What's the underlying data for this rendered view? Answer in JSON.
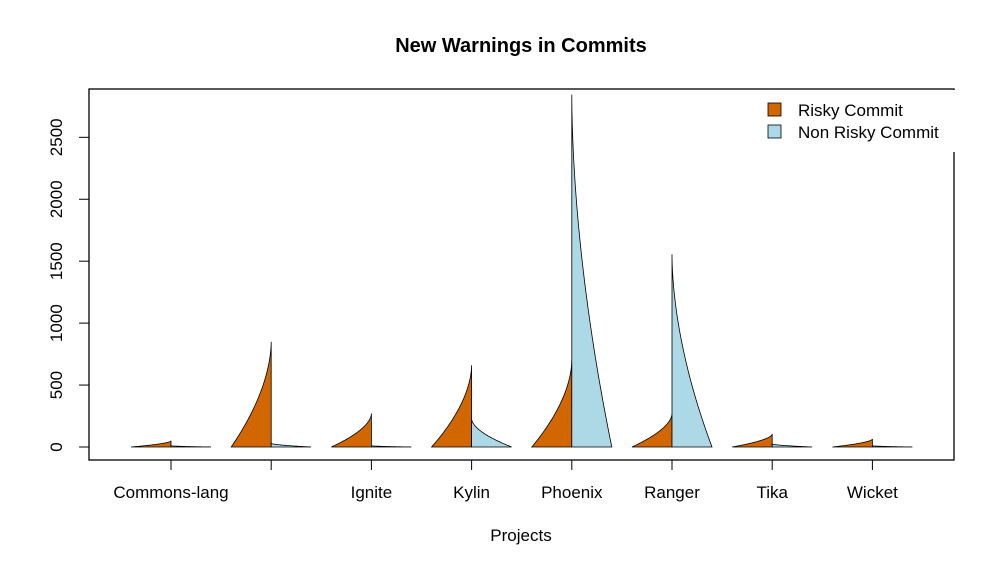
{
  "chart_data": {
    "type": "violin",
    "title": "New Warnings in Commits",
    "xlabel": "Projects",
    "ylabel": "",
    "ylim": [
      -105,
      2890
    ],
    "yticks": [
      0,
      500,
      1000,
      1500,
      2000,
      2500
    ],
    "categories": [
      "Commons-lang",
      "",
      "Ignite",
      "Kylin",
      "Phoenix",
      "Ranger",
      "Tika",
      "Wicket"
    ],
    "legend": {
      "position": "top-right",
      "entries": [
        "Risky Commit",
        "Non Risky Commit"
      ]
    },
    "series": [
      {
        "name": "Risky Commit",
        "side": "left",
        "color": "#d26600",
        "violins": [
          {
            "max": 50,
            "max_width": 40
          },
          {
            "max": 850,
            "max_width": 40
          },
          {
            "max": 270,
            "max_width": 40
          },
          {
            "max": 660,
            "max_width": 40
          },
          {
            "max": 700,
            "max_width": 40
          },
          {
            "max": 270,
            "max_width": 40
          },
          {
            "max": 105,
            "max_width": 40
          },
          {
            "max": 65,
            "max_width": 40
          }
        ]
      },
      {
        "name": "Non Risky Commit",
        "side": "right",
        "color": "#add8e6",
        "violins": [
          {
            "max": 10,
            "max_width": 40
          },
          {
            "max": 30,
            "max_width": 40
          },
          {
            "max": 10,
            "max_width": 40
          },
          {
            "max": 230,
            "max_width": 40
          },
          {
            "max": 2845,
            "max_width": 40
          },
          {
            "max": 1555,
            "max_width": 40
          },
          {
            "max": 25,
            "max_width": 40
          },
          {
            "max": 10,
            "max_width": 40
          }
        ]
      }
    ]
  }
}
